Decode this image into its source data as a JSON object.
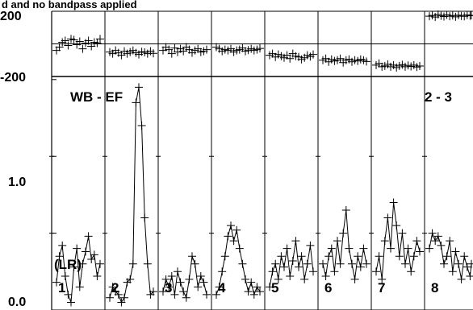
{
  "chart_data": {
    "type": "line",
    "title": "d and no bandpass applied",
    "baseline_label": "WB - EF",
    "polarization_label": "(LR)",
    "channel_label": "2 - 3",
    "phase_axis": {
      "ticks": [
        "200",
        "-200"
      ],
      "ylim": [
        -200,
        200
      ]
    },
    "amp_axis": {
      "ticks": [
        "1.0",
        "0.0"
      ],
      "ylim": [
        0.0,
        1.52
      ]
    },
    "panels": [
      {
        "label": "1",
        "amp": [
          0.18,
          0.35,
          0.42,
          0.22,
          0.1,
          0.05,
          0.28,
          0.4,
          0.15,
          0.3,
          0.38,
          0.48,
          0.33,
          0.36,
          0.22,
          0.3
        ],
        "phase": [
          -40,
          -20,
          10,
          20,
          -10,
          30,
          25,
          -5,
          15,
          -30,
          5,
          20,
          -15,
          10,
          5,
          30
        ]
      },
      {
        "label": "2",
        "amp": [
          0.08,
          0.15,
          0.12,
          0.1,
          0.05,
          0.08,
          0.18,
          0.2,
          0.3,
          1.35,
          1.45,
          1.2,
          0.6,
          0.3,
          0.1,
          0.12
        ],
        "phase": [
          -50,
          -60,
          -40,
          -55,
          -70,
          -45,
          -60,
          -50,
          -40,
          -55,
          -65,
          -48,
          -52,
          -60,
          -45,
          -58
        ]
      },
      {
        "label": "3",
        "amp": [
          0.12,
          0.2,
          0.15,
          0.22,
          0.1,
          0.25,
          0.18,
          0.12,
          0.08,
          0.2,
          0.35,
          0.3,
          0.15,
          0.22,
          0.18,
          0.1
        ],
        "phase": [
          -40,
          -20,
          -35,
          -60,
          -25,
          -50,
          -30,
          -45,
          -20,
          -35,
          -55,
          -40,
          -30,
          -50,
          -45,
          -35
        ]
      },
      {
        "label": "4",
        "amp": [
          0.1,
          0.15,
          0.25,
          0.35,
          0.48,
          0.55,
          0.45,
          0.52,
          0.4,
          0.3,
          0.2,
          0.12,
          0.18,
          0.1,
          0.15,
          0.12
        ],
        "phase": [
          -20,
          -30,
          -45,
          -35,
          -40,
          -30,
          -50,
          -40,
          -35,
          -25,
          -45,
          -38,
          -30,
          -40,
          -35,
          -28
        ]
      },
      {
        "label": "5",
        "amp": [
          0.15,
          0.25,
          0.3,
          0.2,
          0.35,
          0.28,
          0.4,
          0.22,
          0.32,
          0.45,
          0.28,
          0.35,
          0.2,
          0.3,
          0.42,
          0.25
        ],
        "phase": [
          -70,
          -60,
          -80,
          -65,
          -75,
          -85,
          -70,
          -90,
          -60,
          -75,
          -80,
          -95,
          -85,
          -70,
          -78,
          -65
        ]
      },
      {
        "label": "6",
        "amp": [
          0.3,
          0.22,
          0.35,
          0.4,
          0.25,
          0.45,
          0.3,
          0.5,
          0.65,
          0.4,
          0.3,
          0.2,
          0.35,
          0.28,
          0.4,
          0.3
        ],
        "phase": [
          -100,
          -90,
          -110,
          -95,
          -105,
          -100,
          -90,
          -115,
          -100,
          -95,
          -110,
          -100,
          -105,
          -95,
          -100,
          -108
        ]
      },
      {
        "label": "7",
        "amp": [
          0.25,
          0.35,
          0.2,
          0.45,
          0.6,
          0.4,
          0.7,
          0.55,
          0.35,
          0.5,
          0.3,
          0.4,
          0.25,
          0.35,
          0.45,
          0.38
        ],
        "phase": [
          -130,
          -120,
          -140,
          -135,
          -125,
          -140,
          -130,
          -145,
          -135,
          -128,
          -140,
          -132,
          -138,
          -130,
          -142,
          -136
        ]
      },
      {
        "label": "8",
        "amp": [
          0.4,
          0.5,
          0.45,
          0.48,
          0.42,
          0.3,
          0.35,
          0.45,
          0.25,
          0.38,
          0.3,
          0.2,
          0.35,
          0.28,
          0.22,
          0.3
        ],
        "phase": [
          170,
          175,
          165,
          180,
          172,
          168,
          178,
          170,
          174,
          166,
          176,
          171,
          169,
          177,
          173,
          175
        ]
      }
    ]
  }
}
